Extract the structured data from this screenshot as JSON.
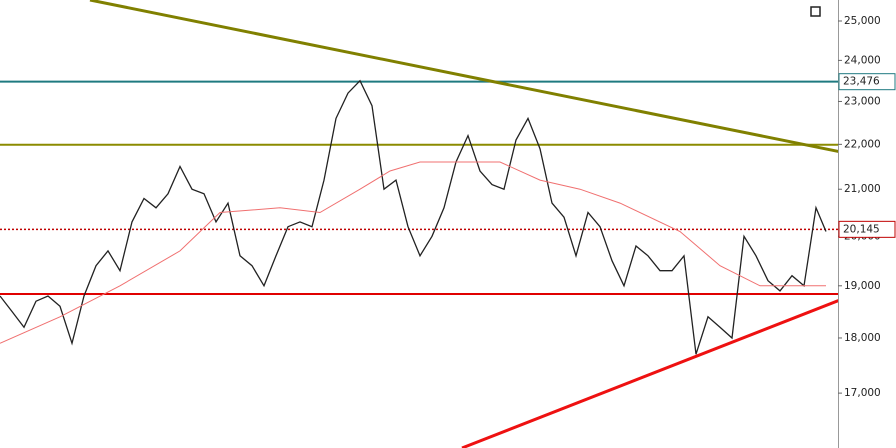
{
  "chart_data": {
    "type": "line",
    "log_scale": true,
    "ylim": [
      16060,
      25550
    ],
    "xlim": [
      0,
      838
    ],
    "yticks": [
      {
        "value": 17000,
        "label": "17,000"
      },
      {
        "value": 18000,
        "label": "18,000"
      },
      {
        "value": 19000,
        "label": "19,000"
      },
      {
        "value": 20000,
        "label": "20,000"
      },
      {
        "value": 21000,
        "label": "21,000"
      },
      {
        "value": 22000,
        "label": "22,000"
      },
      {
        "value": 23000,
        "label": "23,000"
      },
      {
        "value": 24000,
        "label": "24,000"
      },
      {
        "value": 25000,
        "label": "25,000"
      }
    ],
    "series": [
      {
        "color": "#222222",
        "x": [
          0,
          12,
          24,
          36,
          48,
          60,
          72,
          84,
          96,
          108,
          120,
          132,
          144,
          156,
          168,
          180,
          192,
          204,
          216,
          228,
          240,
          252,
          264,
          276,
          288,
          300,
          312,
          324,
          336,
          348,
          360,
          372,
          384,
          396,
          408,
          420,
          432,
          444,
          456,
          468,
          480,
          492,
          504,
          516,
          528,
          540,
          552,
          564,
          576,
          588,
          600,
          612,
          624,
          636,
          648,
          660,
          672,
          684,
          696,
          708,
          720,
          732,
          744,
          756,
          768,
          780,
          792,
          804,
          816,
          826
        ],
        "values": [
          18800,
          18500,
          18200,
          18700,
          18800,
          18600,
          17900,
          18800,
          19400,
          19700,
          19300,
          20300,
          20800,
          20600,
          20900,
          21500,
          21000,
          20900,
          20300,
          20700,
          19600,
          19400,
          19000,
          19600,
          20200,
          20300,
          20200,
          21200,
          22600,
          23200,
          23500,
          22900,
          21000,
          21200,
          20200,
          19600,
          20000,
          20600,
          21600,
          22200,
          21400,
          21100,
          21000,
          22100,
          22600,
          21900,
          20700,
          20400,
          19600,
          20500,
          20200,
          19500,
          19000,
          19800,
          19600,
          19300,
          19300,
          19600,
          17700,
          18400,
          18200,
          18000,
          20000,
          19600,
          19100,
          18900,
          19200,
          19000,
          20600,
          20100
        ]
      },
      {
        "color": "#f07070",
        "x": [
          0,
          60,
          120,
          180,
          220,
          280,
          320,
          360,
          390,
          420,
          460,
          500,
          540,
          580,
          620,
          680,
          720,
          760,
          800,
          826
        ],
        "values": [
          17900,
          18400,
          19000,
          19700,
          20500,
          20600,
          20500,
          21000,
          21400,
          21600,
          21600,
          21600,
          21200,
          21000,
          20700,
          20100,
          19400,
          19000,
          19000,
          19000
        ]
      }
    ],
    "levels": [
      {
        "value": 23476,
        "label": "23,476",
        "color": "#1f7a80"
      },
      {
        "value": 21990,
        "color": "#8b8b00"
      },
      {
        "value": 18840,
        "color": "#e00000"
      },
      {
        "value": 20145,
        "label": "20,145",
        "color": "#c00000",
        "dashed": true
      }
    ],
    "trendlines": [
      {
        "color": "#808000",
        "x": [
          90,
          840
        ],
        "values": [
          25550,
          21830
        ]
      },
      {
        "color": "#ee1111",
        "x": [
          462,
          840
        ],
        "values": [
          16060,
          18722
        ]
      }
    ]
  }
}
